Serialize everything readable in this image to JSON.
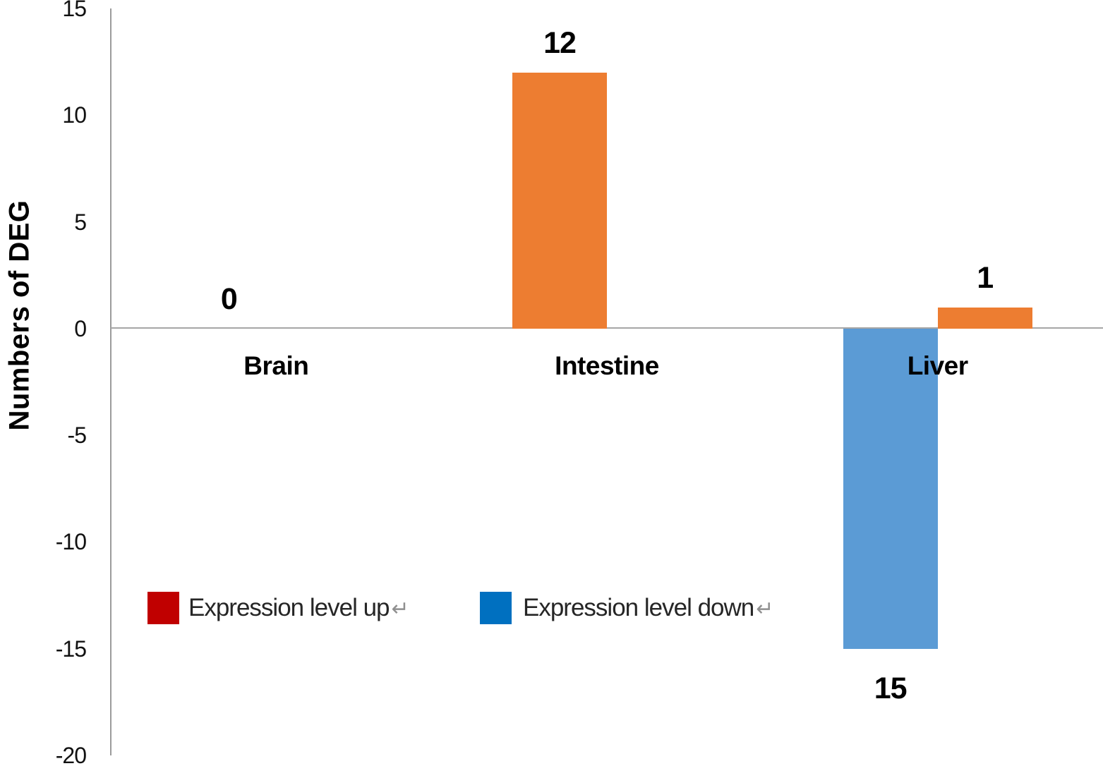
{
  "chart_data": {
    "type": "bar",
    "title": "",
    "xlabel": "",
    "ylabel": "Numbers of DEG",
    "ylim": [
      -20,
      15
    ],
    "ytick_step": 5,
    "yticks": [
      15,
      10,
      5,
      0,
      -5,
      -10,
      -15,
      -20
    ],
    "grid": false,
    "categories": [
      "Brain",
      "Intestine",
      "Liver"
    ],
    "series": [
      {
        "name": "Expression level up",
        "bar_color": "#ED7D31",
        "legend_color": "#C00000",
        "values": [
          0,
          12,
          1
        ]
      },
      {
        "name": "Expression level down",
        "bar_color": "#5B9BD5",
        "legend_color": "#0070C0",
        "values": [
          null,
          null,
          -15
        ]
      }
    ],
    "bars": [
      {
        "category": "Brain",
        "category_index": 0,
        "slot": 0,
        "series": "Expression level up",
        "value": 0,
        "label": "0",
        "color": null
      },
      {
        "category": "Intestine",
        "category_index": 1,
        "slot": 0,
        "series": "Expression level up",
        "value": 12,
        "label": "12",
        "color": "#ED7D31"
      },
      {
        "category": "Liver",
        "category_index": 2,
        "slot": 0,
        "series": "Expression level down",
        "value": -15,
        "label": "15",
        "color": "#5B9BD5"
      },
      {
        "category": "Liver",
        "category_index": 2,
        "slot": 1,
        "series": "Expression level up",
        "value": 1,
        "label": "1",
        "color": "#ED7D31"
      }
    ],
    "legend_position": "inside bottom-left",
    "legend": [
      {
        "label": "Expression level up",
        "color": "#C00000",
        "mark": "↵"
      },
      {
        "label": "Expression level down",
        "color": "#0070C0",
        "mark": "↵"
      }
    ],
    "colors": {
      "bar_up": "#ED7D31",
      "bar_down": "#5B9BD5",
      "legend_up": "#C00000",
      "legend_down": "#0070C0",
      "axis_line": "#9b9b9b",
      "zero_line": "#a6a6a6",
      "text": "#000000",
      "paragraph_mark": "#909090"
    }
  }
}
